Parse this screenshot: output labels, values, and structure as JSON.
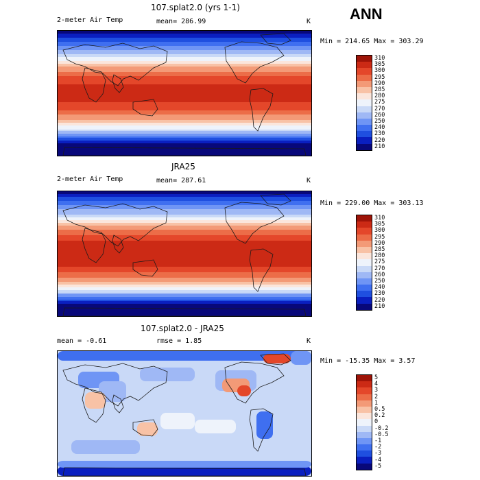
{
  "season": "ANN",
  "colors": {
    "abs": [
      "#08087a",
      "#0a1fc0",
      "#1f4fe0",
      "#3f6ff0",
      "#6f95f5",
      "#9fb8f5",
      "#c9d9f7",
      "#eef3fb",
      "#fbe6dc",
      "#f8c2a6",
      "#f39a77",
      "#ec6d48",
      "#e4472a",
      "#cc2a15",
      "#9e1408"
    ],
    "diff": [
      "#08087a",
      "#0a1fc0",
      "#1f4fe0",
      "#3f6ff0",
      "#6f95f5",
      "#9fb8f5",
      "#c9d9f7",
      "#eef3fb",
      "#fbe6dc",
      "#f8c2a6",
      "#f39a77",
      "#ec6d48",
      "#e4472a",
      "#cc2a15",
      "#9e1408"
    ]
  },
  "panels": [
    {
      "title": "107.splat2.0 (yrs 1-1)",
      "variable": "2-meter Air Temp",
      "mean_label": "mean= 286.99",
      "units": "K",
      "minmax": "Min = 214.65 Max = 303.29",
      "colorbar": [
        "310",
        "305",
        "300",
        "295",
        "290",
        "285",
        "280",
        "275",
        "270",
        "260",
        "250",
        "240",
        "230",
        "220",
        "210"
      ]
    },
    {
      "title": "JRA25",
      "variable": "2-meter Air Temp",
      "mean_label": "mean= 287.61",
      "units": "K",
      "minmax": "Min = 229.00 Max = 303.13",
      "colorbar": [
        "310",
        "305",
        "300",
        "295",
        "290",
        "285",
        "280",
        "275",
        "270",
        "260",
        "250",
        "240",
        "230",
        "220",
        "210"
      ]
    },
    {
      "title": "107.splat2.0 - JRA25",
      "variable": "mean =   -0.61",
      "mean_label": "rmse =    1.85",
      "units": "K",
      "minmax": "Min = -15.35 Max =   3.57",
      "colorbar": [
        "5",
        "4",
        "3",
        "2",
        "1",
        "0.5",
        "0.2",
        "0",
        "-0.2",
        "-0.5",
        "-1",
        "-2",
        "-3",
        "-4",
        "-5"
      ]
    }
  ]
}
